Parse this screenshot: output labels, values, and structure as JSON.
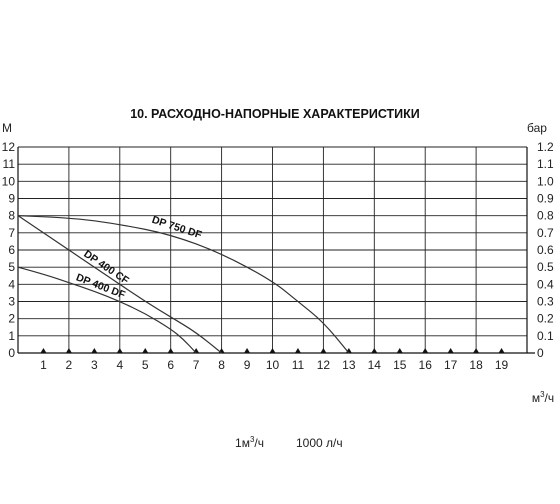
{
  "chart_data": {
    "type": "line",
    "title": "10. РАСХОДНО-НАПОРНЫЕ ХАРАКТЕРИСТИКИ",
    "ylabel": "М",
    "y2label": "бар",
    "xunit": "м³/ч",
    "xlim": [
      0,
      20
    ],
    "ylim": [
      0,
      12
    ],
    "y2lim": [
      0,
      1.2
    ],
    "x_ticks": [
      "1",
      "2",
      "3",
      "4",
      "5",
      "6",
      "7",
      "8",
      "9",
      "10",
      "11",
      "12",
      "13",
      "14",
      "15",
      "16",
      "17",
      "18",
      "19"
    ],
    "y_ticks": [
      "0",
      "1",
      "2",
      "3",
      "4",
      "5",
      "6",
      "7",
      "8",
      "9",
      "10",
      "11",
      "12"
    ],
    "y2_ticks": [
      "0",
      "0.1",
      "0.2",
      "0.3",
      "0.4",
      "0.5",
      "0.6",
      "0.7",
      "0.8",
      "0.9",
      "1.0",
      "1.1",
      "1.2"
    ],
    "grid": true,
    "series": [
      {
        "name": "DP 750 DF",
        "x": [
          0,
          2,
          4,
          6,
          8,
          10,
          11,
          12,
          13
        ],
        "y": [
          8,
          7.9,
          7.5,
          6.9,
          5.8,
          4.2,
          3.0,
          1.8,
          0
        ]
      },
      {
        "name": "DP 400 CF",
        "x": [
          0,
          1,
          2,
          3,
          4,
          5,
          6,
          7,
          8
        ],
        "y": [
          8,
          7.0,
          6.0,
          5.0,
          4.0,
          3.0,
          2.1,
          1.2,
          0
        ]
      },
      {
        "name": "DP 400 DF",
        "x": [
          0,
          1,
          2,
          3,
          4,
          5,
          6,
          6.5,
          7
        ],
        "y": [
          5,
          4.6,
          4.1,
          3.6,
          3.0,
          2.3,
          1.4,
          0.8,
          0
        ]
      }
    ],
    "annotations": {
      "unit_note_left": "1м³/ч",
      "unit_note_right": "1000 л/ч"
    }
  }
}
